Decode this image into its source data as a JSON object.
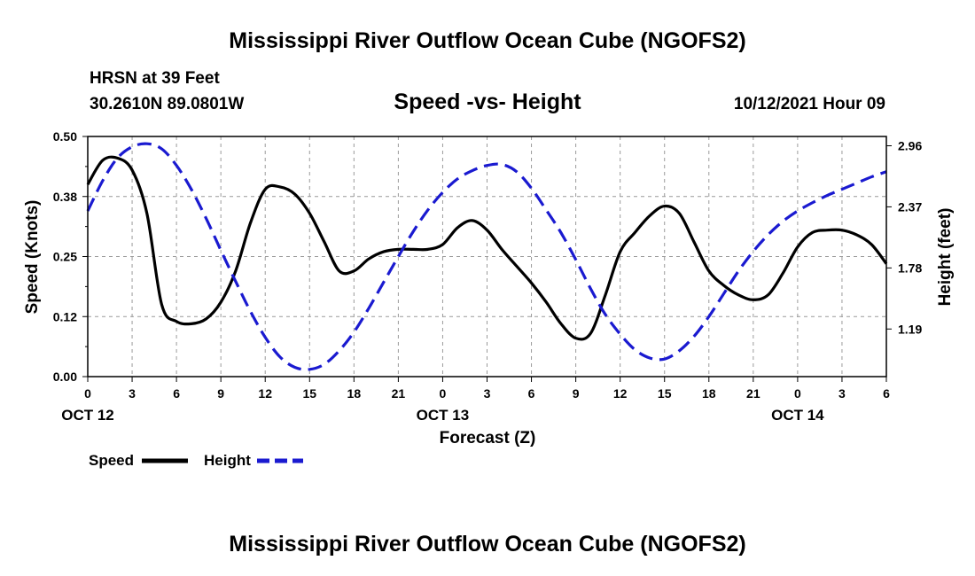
{
  "page_title": "Mississippi River Outflow Ocean Cube (NGOFS2)",
  "footer_title": "Mississippi River Outflow Ocean Cube (NGOFS2)",
  "station": {
    "name_depth": "HRSN at 39 Feet",
    "coords": "30.2610N  89.0801W"
  },
  "issued": "10/12/2021 Hour 09",
  "colors": {
    "speed": "#000000",
    "height": "#1a1ad0",
    "grid": "#9a9a9a"
  },
  "chart_data": {
    "type": "line",
    "title": "Speed -vs- Height",
    "xlabel": "Forecast (Z)",
    "ylabel_left": "Speed (Knots)",
    "ylabel_right": "Height (feet)",
    "x_hours_range": [
      0,
      54
    ],
    "ylim_left": [
      0,
      0.5
    ],
    "ylim_right": [
      0.73,
      3.05
    ],
    "y_ticks_left": [
      "0.00",
      "0.12",
      "0.25",
      "0.38",
      "0.50"
    ],
    "y_tick_values_left": [
      0,
      0.125,
      0.25,
      0.375,
      0.5
    ],
    "y_ticks_right": [
      "1.19",
      "1.78",
      "2.37",
      "2.96"
    ],
    "y_tick_values_right": [
      1.19,
      1.78,
      2.37,
      2.96
    ],
    "x_tick_labels": [
      "0",
      "3",
      "6",
      "9",
      "12",
      "15",
      "18",
      "21",
      "0",
      "3",
      "6",
      "9",
      "12",
      "15",
      "18",
      "21",
      "0",
      "3",
      "6"
    ],
    "date_labels": [
      {
        "text": "OCT 12",
        "hour": 18
      },
      {
        "text": "OCT 13",
        "hour": 42
      },
      {
        "text": "OCT 14",
        "hour": 66
      }
    ],
    "hour_offset": 0,
    "series": [
      {
        "name": "Speed",
        "axis": "left",
        "style": "solid",
        "x": [
          0,
          1,
          2,
          3,
          4,
          5,
          6,
          7,
          8,
          9,
          10,
          11,
          12,
          13,
          14,
          15,
          16,
          17,
          18,
          19,
          20,
          21,
          22,
          23,
          24,
          25,
          26,
          27,
          28,
          29,
          30,
          31,
          32,
          33,
          34,
          35,
          36,
          37,
          38,
          39,
          40,
          41,
          42,
          43,
          44,
          45,
          46,
          47,
          48,
          49,
          50,
          51,
          52,
          53,
          54
        ],
        "values": [
          0.4,
          0.45,
          0.455,
          0.43,
          0.34,
          0.15,
          0.115,
          0.11,
          0.12,
          0.155,
          0.22,
          0.32,
          0.39,
          0.395,
          0.38,
          0.34,
          0.28,
          0.22,
          0.22,
          0.245,
          0.26,
          0.265,
          0.265,
          0.265,
          0.275,
          0.31,
          0.325,
          0.305,
          0.265,
          0.23,
          0.195,
          0.155,
          0.11,
          0.08,
          0.09,
          0.17,
          0.26,
          0.3,
          0.335,
          0.355,
          0.34,
          0.28,
          0.22,
          0.19,
          0.17,
          0.16,
          0.17,
          0.215,
          0.27,
          0.3,
          0.305,
          0.305,
          0.295,
          0.275,
          0.235
        ]
      },
      {
        "name": "Height",
        "axis": "right",
        "style": "dashed",
        "x": [
          0,
          1,
          2,
          3,
          4,
          5,
          6,
          7,
          8,
          9,
          10,
          11,
          12,
          13,
          14,
          15,
          16,
          17,
          18,
          19,
          20,
          21,
          22,
          23,
          24,
          25,
          26,
          27,
          28,
          29,
          30,
          31,
          32,
          33,
          34,
          35,
          36,
          37,
          38,
          39,
          40,
          41,
          42,
          43,
          44,
          45,
          46,
          47,
          48,
          49,
          50,
          51,
          52,
          53,
          54
        ],
        "values": [
          2.33,
          2.62,
          2.84,
          2.95,
          2.98,
          2.93,
          2.77,
          2.54,
          2.26,
          1.95,
          1.65,
          1.36,
          1.11,
          0.92,
          0.82,
          0.8,
          0.85,
          0.98,
          1.16,
          1.39,
          1.64,
          1.89,
          2.13,
          2.34,
          2.51,
          2.64,
          2.72,
          2.77,
          2.78,
          2.71,
          2.55,
          2.34,
          2.12,
          1.86,
          1.58,
          1.33,
          1.14,
          0.99,
          0.91,
          0.9,
          0.98,
          1.12,
          1.31,
          1.53,
          1.75,
          1.94,
          2.1,
          2.23,
          2.33,
          2.41,
          2.48,
          2.54,
          2.6,
          2.66,
          2.71
        ]
      }
    ],
    "legend": {
      "placement": "bottom-left",
      "speed_label": "Speed",
      "height_label": "Height"
    }
  }
}
